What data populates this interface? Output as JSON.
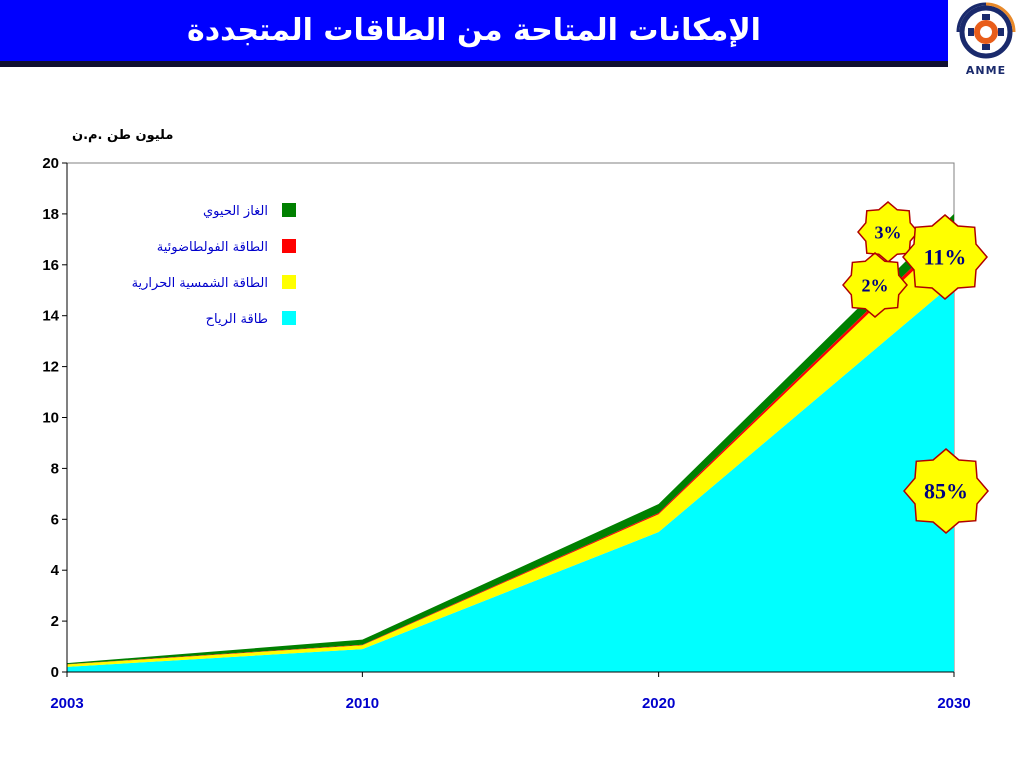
{
  "title": "الإمكانات المتاحة من الطاقات المتجددة",
  "logo": {
    "caption": "ANME"
  },
  "chart_data": {
    "type": "area",
    "stacked": true,
    "ylabel": "مليون طن .م.ن",
    "ylim": [
      0,
      20
    ],
    "y_ticks": [
      "0",
      "2",
      "4",
      "6",
      "8",
      "10",
      "12",
      "14",
      "16",
      "18",
      "20"
    ],
    "x": [
      "2003",
      "2010",
      "2020",
      "2030"
    ],
    "x_positions": [
      0,
      0.333,
      0.667,
      1
    ],
    "legend_position": "top-left",
    "series": [
      {
        "name": "طاقة الرياح",
        "color": "#00ffff",
        "values": [
          0.2,
          0.9,
          5.5,
          15.3
        ]
      },
      {
        "name": "الطاقة الشمسية الحرارية",
        "color": "#ffff00",
        "values": [
          0.1,
          0.15,
          0.7,
          2.0
        ]
      },
      {
        "name": "الطاقة الفولطاضوئية",
        "color": "#ff0000",
        "values": [
          0.01,
          0.02,
          0.05,
          0.2
        ]
      },
      {
        "name": "الغاز الحيوي",
        "color": "#008000",
        "values": [
          0.04,
          0.2,
          0.35,
          0.5
        ]
      }
    ],
    "legend_order": [
      3,
      2,
      1,
      0
    ],
    "annotations": [
      {
        "text": "3%",
        "color": "#ffff00"
      },
      {
        "text": "11%",
        "color": "#ffff00"
      },
      {
        "text": "2%",
        "color": "#ffff00"
      },
      {
        "text": "85%",
        "color": "#ffff00"
      }
    ]
  }
}
